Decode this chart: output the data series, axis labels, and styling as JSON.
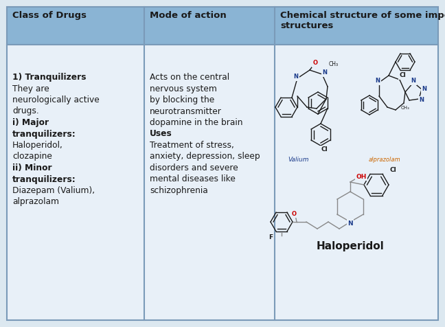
{
  "bg_color": "#dce8f0",
  "header_bg": "#8ab4d4",
  "cell_bg": "#e8f0f8",
  "border_color": "#7a9ab8",
  "text_color": "#1a1a1a",
  "col1_header": "Class of Drugs",
  "col2_header": "Mode of action",
  "col3_header": "Chemical structure of some important\nstructures",
  "col1_lines": [
    {
      "text": "",
      "bold": false
    },
    {
      "text": "",
      "bold": false
    },
    {
      "text": "1) Tranquilizers",
      "bold": true
    },
    {
      "text": "They are",
      "bold": false
    },
    {
      "text": "neurologically active",
      "bold": false
    },
    {
      "text": "drugs.",
      "bold": false
    },
    {
      "text": "i) Major",
      "bold": true
    },
    {
      "text": "tranquilizers:",
      "bold": true
    },
    {
      "text": "Haloperidol,",
      "bold": false
    },
    {
      "text": "clozapine",
      "bold": false
    },
    {
      "text": "ii) Minor",
      "bold": true
    },
    {
      "text": "tranquilizers:",
      "bold": true
    },
    {
      "text": "Diazepam (Valium),",
      "bold": false
    },
    {
      "text": "alprazolam",
      "bold": false
    }
  ],
  "col2_lines": [
    {
      "text": "",
      "bold": false
    },
    {
      "text": "",
      "bold": false
    },
    {
      "text": "Acts on the central",
      "bold": false
    },
    {
      "text": "nervous system",
      "bold": false
    },
    {
      "text": "by blocking the",
      "bold": false
    },
    {
      "text": "neurotransmitter",
      "bold": false
    },
    {
      "text": "dopamine in the brain",
      "bold": false
    },
    {
      "text": "Uses",
      "bold": true
    },
    {
      "text": "Treatment of stress,",
      "bold": false
    },
    {
      "text": "anxiety, depression, sleep",
      "bold": false
    },
    {
      "text": "disorders and severe",
      "bold": false
    },
    {
      "text": "mental diseases like",
      "bold": false
    },
    {
      "text": "schizophrenia",
      "bold": false
    }
  ],
  "valium_label": "Valium",
  "alprazolam_label": "alprazolam",
  "haloperidol_label": "Haloperidol",
  "label_color_valium": "#1a3a8a",
  "label_color_alprazolam": "#cc6600",
  "label_color_haloperidol": "#1a1a1a",
  "atom_color_N": "#1a3a8a",
  "atom_color_O": "#cc0000",
  "atom_color_Cl": "#1a1a1a",
  "atom_color_F": "#1a1a1a",
  "atom_color_OH": "#cc0000",
  "mol_color": "#1a1a1a",
  "figsize": [
    6.48,
    4.76
  ],
  "dpi": 100
}
